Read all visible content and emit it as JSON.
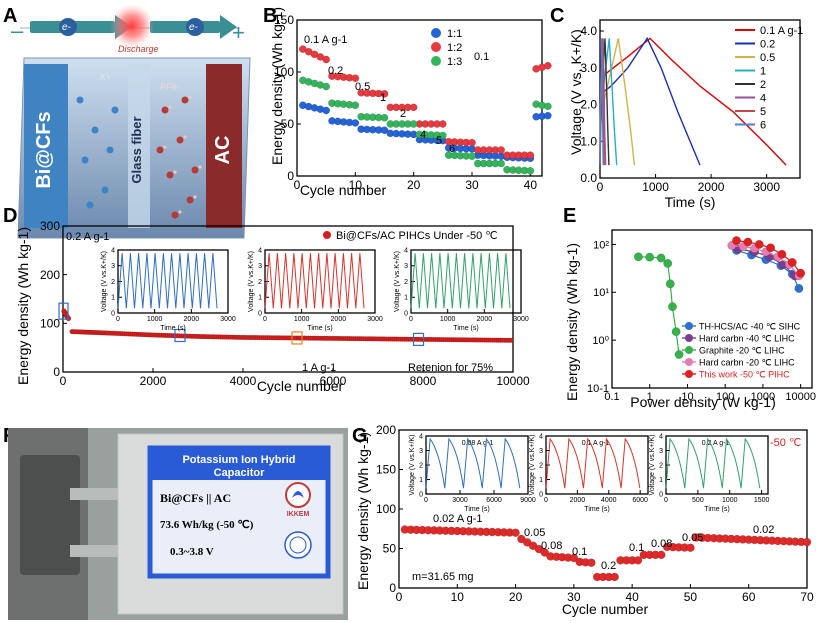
{
  "panel_labels": {
    "a": "A",
    "b": "B",
    "c": "C",
    "d": "D",
    "e": "E",
    "f": "F",
    "g": "G"
  },
  "panel_a": {
    "electron1": "e-",
    "electron2": "e-",
    "minus": "–",
    "plus": "+",
    "discharge": "Discharge",
    "left_electrode": "Bi@CFs",
    "separator": "Glass fiber",
    "right_electrode": "AC",
    "cation": "K+",
    "anion": "PF6-",
    "colors": {
      "cell": "#9fb4cf",
      "left": "#3f83c2",
      "right": "#8a2a2a"
    }
  },
  "panel_f": {
    "title1": "Potassium  Ion Hybrid",
    "title2": "Capacitor",
    "line1": "Bi@CFs || AC",
    "line2": "73.6 Wh/kg (-50 ℃)",
    "line3": "0.3~3.8 V",
    "logo_text": "IKKEM",
    "colors": {
      "border": "#2a5bd7",
      "inner": "#e9eef8"
    }
  },
  "chart_data": [
    {
      "id": "B",
      "type": "scatter",
      "xlabel": "Cycle number",
      "ylabel": "Energy density (Wh kg-1)",
      "xlim": [
        0,
        42
      ],
      "ylim": [
        0,
        150
      ],
      "xticks": [
        0,
        10,
        20,
        30,
        40
      ],
      "yticks": [
        0,
        50,
        100,
        150
      ],
      "legend": [
        "1:1",
        "1:2",
        "1:3"
      ],
      "annotations": [
        "0.1 A g-1",
        "0.2",
        "0.5",
        "1",
        "2",
        "4",
        "5",
        "6",
        "0.1"
      ],
      "series": [
        {
          "name": "1:1",
          "color": "#2563d9",
          "segments": [
            [
              1,
              5,
              68,
              63
            ],
            [
              6,
              10,
              53,
              51
            ],
            [
              11,
              15,
              45,
              44
            ],
            [
              16,
              20,
              41,
              40
            ],
            [
              21,
              25,
              35,
              34
            ],
            [
              26,
              30,
              27,
              26
            ],
            [
              31,
              35,
              20,
              19
            ],
            [
              36,
              40,
              18,
              17
            ],
            [
              41,
              43,
              57,
              58
            ]
          ]
        },
        {
          "name": "1:2",
          "color": "#e8393f",
          "segments": [
            [
              1,
              5,
              122,
              112
            ],
            [
              6,
              10,
              96,
              94
            ],
            [
              11,
              15,
              80,
              79
            ],
            [
              16,
              20,
              66,
              66
            ],
            [
              21,
              25,
              50,
              50
            ],
            [
              26,
              30,
              33,
              32
            ],
            [
              31,
              35,
              25,
              25
            ],
            [
              36,
              40,
              20,
              20
            ],
            [
              41,
              43,
              103,
              106
            ]
          ]
        },
        {
          "name": "1:3",
          "color": "#35b55b",
          "segments": [
            [
              1,
              5,
              92,
              86
            ],
            [
              6,
              10,
              70,
              68
            ],
            [
              11,
              15,
              57,
              56
            ],
            [
              16,
              20,
              50,
              50
            ],
            [
              21,
              25,
              40,
              39
            ],
            [
              26,
              30,
              20,
              19
            ],
            [
              31,
              35,
              12,
              12
            ],
            [
              36,
              40,
              6,
              5
            ],
            [
              41,
              43,
              69,
              67
            ]
          ]
        }
      ]
    },
    {
      "id": "C",
      "type": "line",
      "xlabel": "Time (s)",
      "ylabel": "Voltage (V vs. K+/K)",
      "xlim": [
        0,
        3600
      ],
      "ylim": [
        0,
        4.3
      ],
      "xticks": [
        0,
        1000,
        2000,
        3000
      ],
      "yticks": [
        0.0,
        1.0,
        2.0,
        3.0,
        4.0
      ],
      "series": [
        {
          "name": "0.1 A g-1",
          "color": "#e00000",
          "x": [
            0,
            30,
            200,
            500,
            900,
            1300,
            1800,
            2400,
            3000,
            3350
          ],
          "y": [
            0.4,
            2.75,
            2.95,
            3.3,
            3.8,
            3.2,
            2.5,
            1.8,
            0.9,
            0.35
          ]
        },
        {
          "name": "0.2",
          "color": "#1a2fb0",
          "x": [
            0,
            20,
            200,
            500,
            850,
            1100,
            1400,
            1800
          ],
          "y": [
            0.4,
            2.3,
            2.5,
            3.0,
            3.8,
            3.0,
            1.8,
            0.35
          ]
        },
        {
          "name": "0.5",
          "color": "#d4b24a",
          "x": [
            0,
            15,
            150,
            330,
            450,
            550,
            620
          ],
          "y": [
            0.4,
            1.7,
            2.6,
            3.8,
            2.5,
            1.3,
            0.35
          ]
        },
        {
          "name": "1",
          "color": "#26b0c9",
          "x": [
            0,
            10,
            80,
            165,
            220,
            260,
            300
          ],
          "y": [
            0.4,
            1.4,
            2.7,
            3.8,
            2.4,
            1.3,
            0.35
          ]
        },
        {
          "name": "2",
          "color": "#333333",
          "x": [
            0,
            8,
            50,
            90,
            120,
            140,
            160
          ],
          "y": [
            0.4,
            1.3,
            2.8,
            3.8,
            2.4,
            1.3,
            0.35
          ]
        },
        {
          "name": "4",
          "color": "#9a4f9a",
          "x": [
            0,
            5,
            30,
            55,
            72,
            85,
            100
          ],
          "y": [
            0.4,
            1.3,
            2.8,
            3.8,
            2.4,
            1.3,
            0.35
          ]
        },
        {
          "name": "5",
          "color": "#c14a48",
          "x": [
            0,
            4,
            22,
            42,
            55,
            65,
            75
          ],
          "y": [
            0.4,
            1.3,
            2.8,
            3.8,
            2.4,
            1.3,
            0.35
          ]
        },
        {
          "name": "6",
          "color": "#5a7dc4",
          "x": [
            0,
            3,
            18,
            32,
            42,
            50,
            58
          ],
          "y": [
            0.4,
            1.3,
            2.8,
            3.8,
            2.4,
            1.3,
            0.35
          ]
        }
      ]
    },
    {
      "id": "D",
      "type": "scatter",
      "xlabel": "Cycle number",
      "ylabel": "Energy density (Wh kg-1)",
      "xlim": [
        0,
        10000
      ],
      "ylim": [
        0,
        300
      ],
      "xticks": [
        0,
        2000,
        4000,
        6000,
        8000,
        10000
      ],
      "yticks": [
        0,
        100,
        200,
        300
      ],
      "legend": [
        "Bi@CFs/AC PIHCs Under -50 ℃"
      ],
      "annotations": [
        "0.2 A g-1",
        "1 A g-1",
        "Retenion for 75%"
      ],
      "series": [
        {
          "name": "initial",
          "color": "#d81e1e",
          "x": [
            0,
            20,
            40,
            60,
            80,
            100
          ],
          "y": [
            125,
            122,
            118,
            115,
            112,
            110
          ]
        },
        {
          "name": "long-cycle",
          "color": "#d81e1e",
          "x": [
            200,
            1000,
            2000,
            3000,
            4000,
            5000,
            6000,
            7000,
            8000,
            9000,
            10000
          ],
          "y": [
            83,
            80,
            76,
            73,
            71,
            70,
            69,
            68,
            67,
            66,
            65
          ]
        }
      ],
      "insets": [
        {
          "color": "#2f6fc4",
          "xlabel": "Time (s)",
          "ylabel": "Voltage (V vs.K+/K)",
          "xlim": [
            0,
            3000
          ],
          "ylim": [
            0,
            4
          ],
          "cycles": 12,
          "xticks": [
            0,
            1000,
            2000,
            3000
          ],
          "yticks": [
            0,
            1,
            2,
            3,
            4
          ]
        },
        {
          "color": "#d9342b",
          "xlabel": "Time (s)",
          "ylabel": "Voltage (V vs.K+/K)",
          "xlim": [
            0,
            3000
          ],
          "ylim": [
            0,
            4
          ],
          "cycles": 12,
          "xticks": [
            0,
            1000,
            2000,
            3000
          ],
          "yticks": [
            0,
            1,
            2,
            3,
            4
          ]
        },
        {
          "color": "#2ea566",
          "xlabel": "Time (s)",
          "ylabel": "Voltage (V vs.K+/K)",
          "xlim": [
            0,
            3000
          ],
          "ylim": [
            0,
            4
          ],
          "cycles": 12,
          "xticks": [
            0,
            1000,
            2000,
            3000
          ],
          "yticks": [
            0,
            1,
            2,
            3,
            4
          ]
        }
      ]
    },
    {
      "id": "E",
      "type": "scatter",
      "xlabel": "Power density (W kg-1)",
      "ylabel": "Energy density (Wh kg-1)",
      "xscale": "log",
      "yscale": "log",
      "xlim": [
        0.1,
        20000
      ],
      "ylim": [
        0.1,
        200
      ],
      "xticks": [
        0.1,
        1,
        10,
        100,
        1000,
        10000
      ],
      "xticklabels": [
        "0.1",
        "1",
        "10",
        "100",
        "1000",
        "10000"
      ],
      "yticks": [
        0.1,
        1,
        10,
        100
      ],
      "yticklabels": [
        "10-1",
        "10⁰",
        "10¹",
        "10²"
      ],
      "series": [
        {
          "name": "TH-HCS/AC -40 ℃ SIHC",
          "color": "#2f6fd0",
          "x": [
            200,
            500,
            1200,
            3000,
            6000,
            9000
          ],
          "y": [
            75,
            60,
            48,
            36,
            24,
            12
          ]
        },
        {
          "name": "Hard carbn -40 ℃ LIHC",
          "color": "#7a3d8f",
          "x": [
            220,
            600,
            1500,
            3500,
            7000
          ],
          "y": [
            80,
            70,
            55,
            38,
            22
          ]
        },
        {
          "name": "Graphite -20 ℃ LIHC",
          "color": "#36b24a",
          "x": [
            0.5,
            1,
            2,
            3,
            3.5,
            4,
            5,
            6
          ],
          "y": [
            55,
            54,
            52,
            40,
            15,
            5,
            1.5,
            0.5
          ]
        },
        {
          "name": "Hard carbn -20 ℃ LIHC",
          "color": "#e67cb0",
          "x": [
            150,
            300,
            600,
            1200,
            2500,
            5000,
            9000
          ],
          "y": [
            95,
            90,
            82,
            70,
            55,
            38,
            22
          ]
        },
        {
          "name": "This work -50 ℃ PIHC",
          "color": "#e02020",
          "x": [
            200,
            400,
            800,
            1600,
            3200,
            6000,
            10000
          ],
          "y": [
            120,
            112,
            100,
            85,
            62,
            42,
            25
          ]
        }
      ]
    },
    {
      "id": "G",
      "type": "scatter",
      "xlabel": "Cycle number",
      "ylabel": "Energy density (Wh kg-1)",
      "xlim": [
        0,
        70
      ],
      "ylim": [
        0,
        200
      ],
      "xticks": [
        0,
        10,
        20,
        30,
        40,
        50,
        60,
        70
      ],
      "yticks": [
        0,
        50,
        100,
        150,
        200
      ],
      "annotations": [
        "0.02 A g-1",
        "0.05",
        "0.08",
        "0.1",
        "0.2",
        "0.1",
        "0.08",
        "0.05",
        "0.02",
        "m=31.65 mg",
        "-50 ℃"
      ],
      "series": [
        {
          "name": "G",
          "color": "#e02a2a",
          "segments": [
            [
              1,
              20,
              74,
              70
            ],
            [
              21,
              25,
              62,
              45
            ],
            [
              26,
              30,
              40,
              38
            ],
            [
              31,
              33,
              33,
              32
            ],
            [
              34,
              37,
              14,
              14
            ],
            [
              38,
              41,
              35,
              35
            ],
            [
              42,
              45,
              42,
              42
            ],
            [
              46,
              50,
              52,
              51
            ],
            [
              51,
              70,
              64,
              58
            ]
          ]
        }
      ],
      "insets": [
        {
          "label": "0.08 A g-1",
          "color": "#2f6fc4",
          "xlabel": "Time (s)",
          "ylabel": "Voltage (V vs.K+/K)",
          "xlim": [
            0,
            9000
          ],
          "ylim": [
            0,
            4
          ],
          "cycles": 5,
          "xticks": [
            0,
            3000,
            6000,
            9000
          ],
          "yticks": [
            0,
            1,
            2,
            3,
            4
          ]
        },
        {
          "label": "0.1 A g-1",
          "color": "#d9342b",
          "xlabel": "Time (s)",
          "ylabel": "Voltage (V vs.K+/K)",
          "xlim": [
            0,
            6500
          ],
          "ylim": [
            0,
            4
          ],
          "cycles": 5,
          "xticks": [
            0,
            2000,
            4000,
            6000
          ],
          "yticks": [
            0,
            1,
            2,
            3,
            4
          ]
        },
        {
          "label": "0.2 A g-1",
          "color": "#2ea566",
          "xlabel": "Time (s)",
          "ylabel": "Voltage (V vs.K+/K)",
          "xlim": [
            0,
            1600
          ],
          "ylim": [
            0,
            4
          ],
          "cycles": 5,
          "xticks": [
            0,
            500,
            1000,
            1500
          ],
          "yticks": [
            0,
            1,
            2,
            3,
            4
          ]
        }
      ]
    }
  ]
}
